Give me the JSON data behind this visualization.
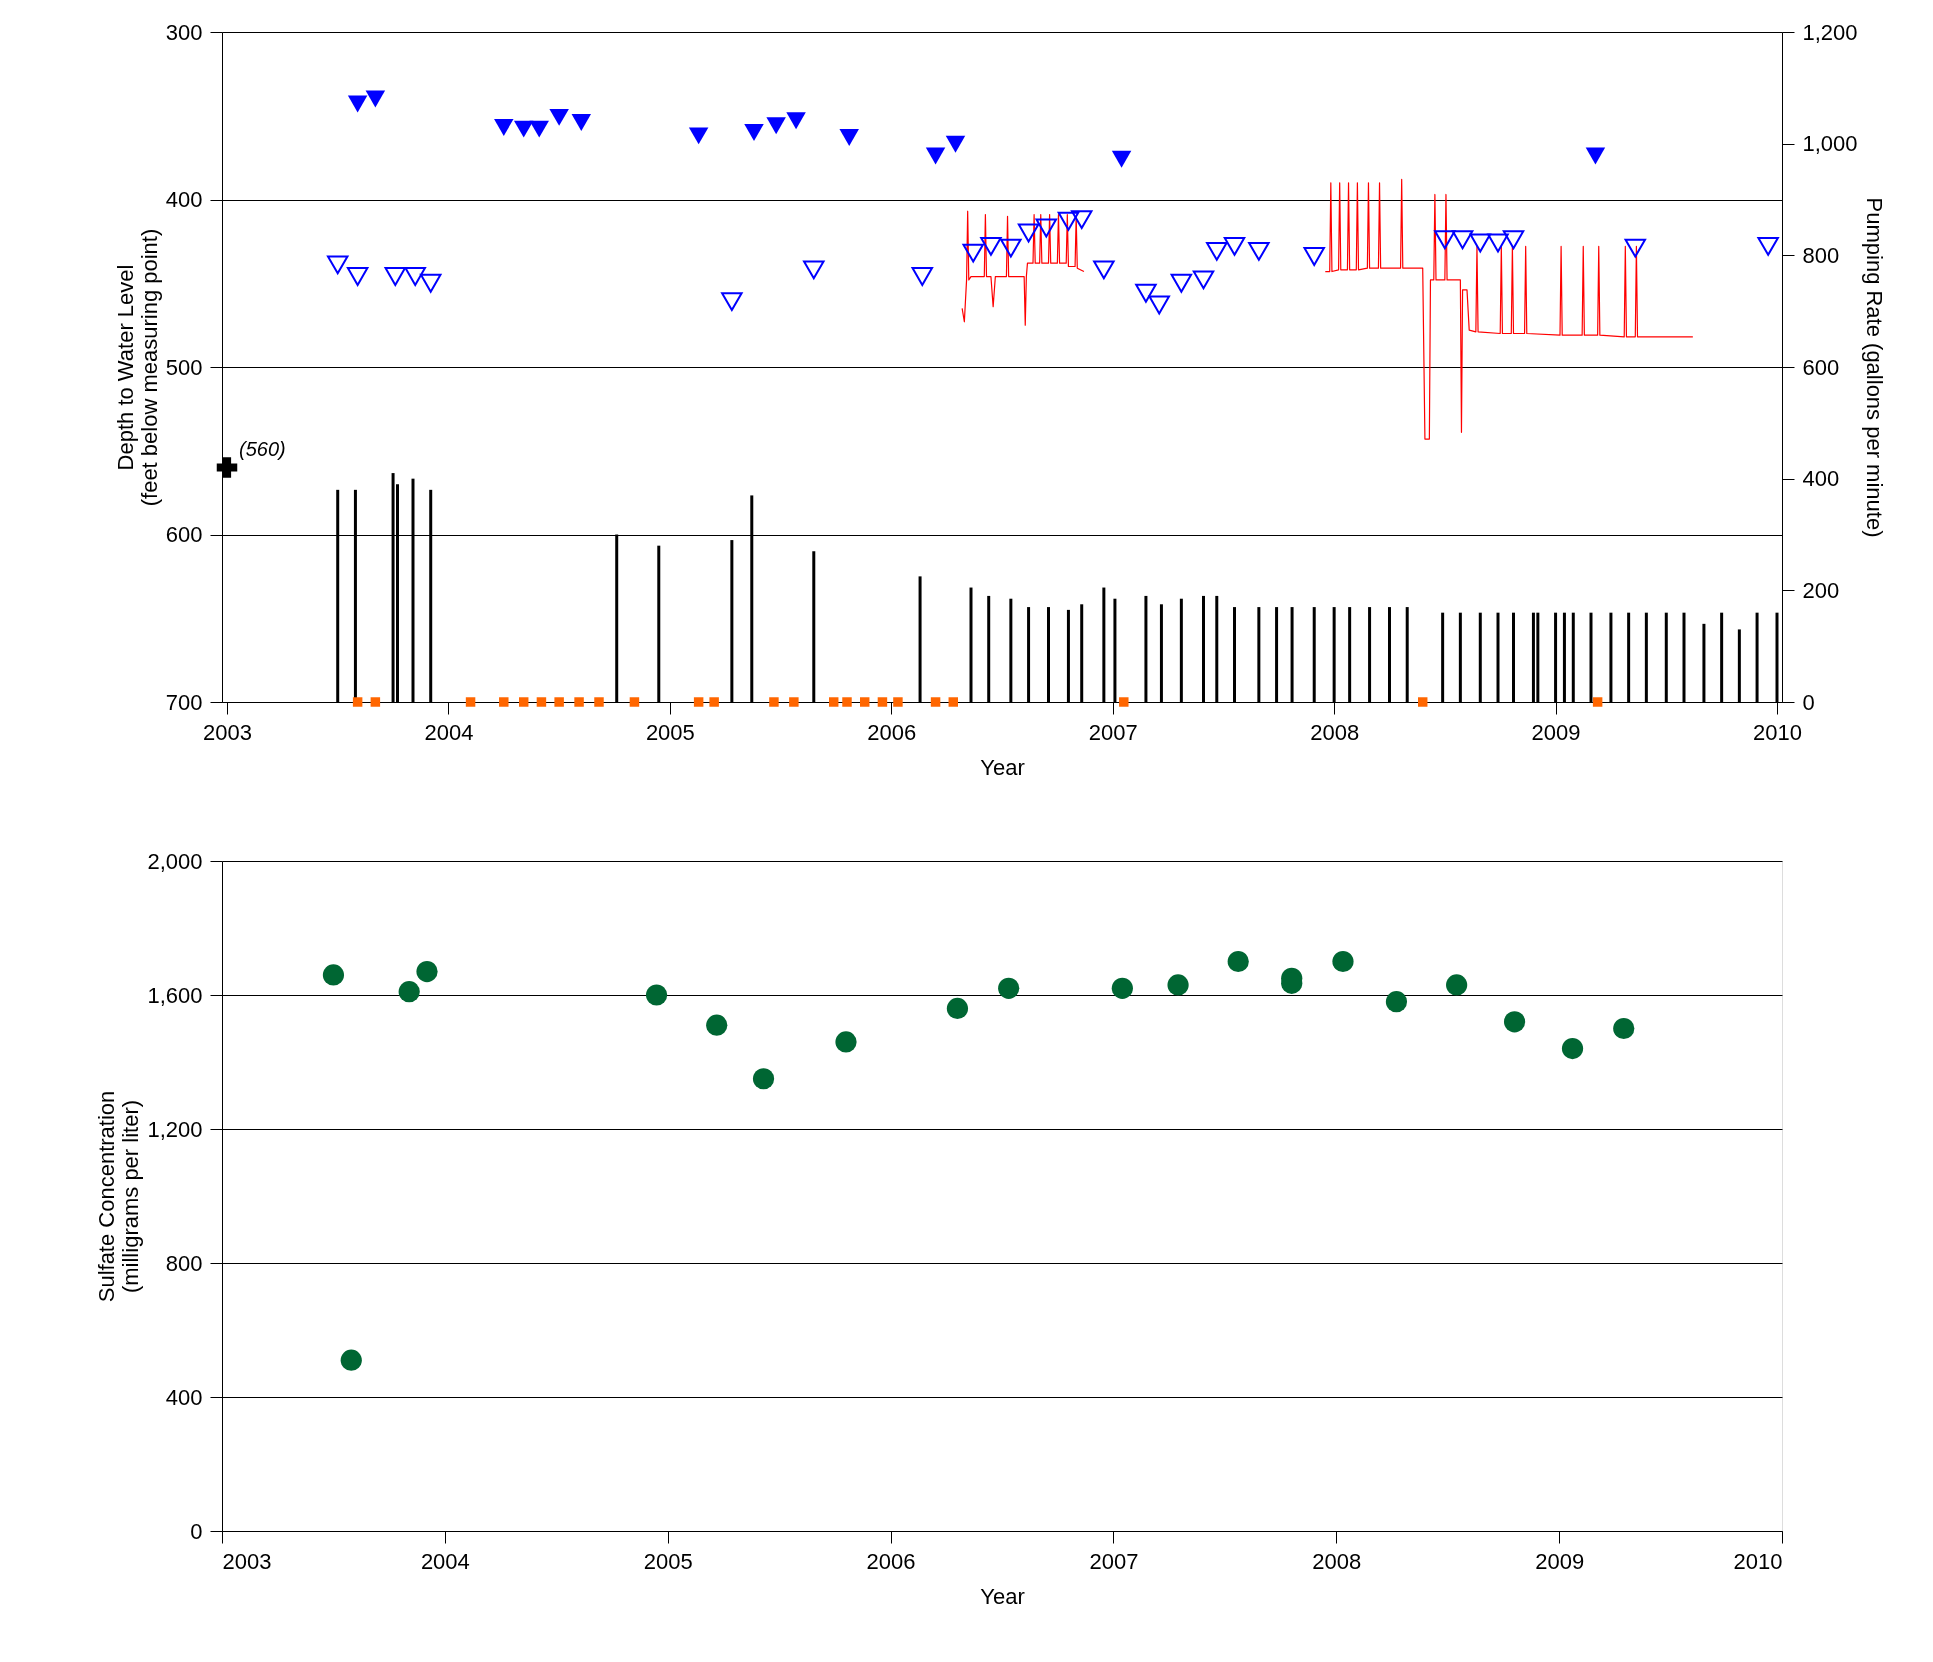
{
  "chart_data": [
    {
      "type": "scatter",
      "xlabel": "Year",
      "ylabel": "Depth to Water Level\n(feet below measuring point)",
      "y2label": "Pumping Rate (gallons per minute)",
      "xlim": [
        2003,
        2010
      ],
      "xticks": [
        2003,
        2004,
        2005,
        2006,
        2007,
        2008,
        2009,
        2010
      ],
      "ylim": [
        700,
        300
      ],
      "yticks": [
        300,
        400,
        500,
        600,
        700
      ],
      "y2lim": [
        0,
        1200
      ],
      "y2ticks": [
        0,
        200,
        400,
        600,
        800,
        {
          "value": 1000,
          "label": "1,000"
        },
        {
          "value": 1200,
          "label": "1,200"
        }
      ],
      "grid": "y",
      "annotations": [
        {
          "text": "(560)",
          "x": 2003,
          "y": 560
        }
      ],
      "series": [
        {
          "type": "bar",
          "axis": "y2",
          "color": "#000000",
          "x": [
            2003.5,
            2003.58,
            2003.75,
            2003.77,
            2003.84,
            2003.92,
            2004.76,
            2004.95,
            2005.28,
            2005.37,
            2005.65,
            2006.13,
            2006.36,
            2006.44,
            2006.54,
            2006.62,
            2006.71,
            2006.8,
            2006.86,
            2006.96,
            2007.01,
            2007.15,
            2007.22,
            2007.31,
            2007.41,
            2007.47,
            2007.55,
            2007.66,
            2007.74,
            2007.81,
            2007.91,
            2008.0,
            2008.07,
            2008.16,
            2008.25,
            2008.33,
            2008.49,
            2008.57,
            2008.66,
            2008.74,
            2008.81,
            2008.9,
            2008.92,
            2009.0,
            2009.04,
            2009.08,
            2009.16,
            2009.25,
            2009.33,
            2009.41,
            2009.5,
            2009.58,
            2009.67,
            2009.75,
            2009.83,
            2009.91,
            2010.0
          ],
          "values": [
            380,
            380,
            410,
            390,
            400,
            380,
            300,
            280,
            290,
            370,
            270,
            225,
            205,
            190,
            185,
            170,
            170,
            165,
            175,
            205,
            185,
            190,
            175,
            185,
            190,
            190,
            170,
            170,
            170,
            170,
            170,
            170,
            170,
            170,
            170,
            170,
            160,
            160,
            160,
            160,
            160,
            160,
            160,
            160,
            160,
            160,
            160,
            160,
            160,
            160,
            160,
            160,
            140,
            160,
            130,
            160,
            160
          ]
        },
        {
          "axis": "y2",
          "marker": "square",
          "color": "#ff6600",
          "x": [
            2003.59,
            2003.67,
            2004.1,
            2004.25,
            2004.34,
            2004.42,
            2004.5,
            2004.59,
            2004.68,
            2004.84,
            2005.13,
            2005.2,
            2005.47,
            2005.56,
            2005.74,
            2005.8,
            2005.88,
            2005.96,
            2006.03,
            2006.2,
            2006.28,
            2007.05,
            2008.4,
            2009.19
          ],
          "values": [
            0,
            0,
            0,
            0,
            0,
            0,
            0,
            0,
            0,
            0,
            0,
            0,
            0,
            0,
            0,
            0,
            0,
            0,
            0,
            0,
            0,
            0,
            0,
            0
          ]
        },
        {
          "type": "line",
          "color": "#ff0000",
          "x": [
            2006.32,
            2006.33,
            2006.34,
            2006.345,
            2006.35,
            2006.36,
            2006.4,
            2006.42,
            2006.425,
            2006.43,
            2006.45,
            2006.46,
            2006.47,
            2006.5,
            2006.52,
            2006.525,
            2006.53,
            2006.56,
            2006.58,
            2006.6,
            2006.605,
            2006.61,
            2006.615,
            2006.62,
            2006.64,
            2006.645,
            2006.65,
            2006.67,
            2006.675,
            2006.68,
            2006.71,
            2006.715,
            2006.72,
            2006.75,
            2006.755,
            2006.76,
            2006.79,
            2006.795,
            2006.8,
            2006.83,
            2006.835,
            2006.84,
            2006.87,
            2007.4,
            2007.96,
            2007.98,
            2007.985,
            2007.99,
            2008.02,
            2008.025,
            2008.03,
            2008.06,
            2008.065,
            2008.07,
            2008.1,
            2008.105,
            2008.11,
            2008.15,
            2008.155,
            2008.16,
            2008.2,
            2008.205,
            2008.21,
            2008.3,
            2008.305,
            2008.31,
            2008.4,
            2008.41,
            2008.412,
            2008.43,
            2008.435,
            2008.45,
            2008.455,
            2008.46,
            2008.5,
            2008.505,
            2008.51,
            2008.57,
            2008.575,
            2008.58,
            2008.6,
            2008.61,
            2008.64,
            2008.645,
            2008.65,
            2008.75,
            2008.755,
            2008.76,
            2008.8,
            2008.805,
            2008.81,
            2008.86,
            2008.865,
            2008.87,
            2009.02,
            2009.025,
            2009.03,
            2009.12,
            2009.125,
            2009.13,
            2009.19,
            2009.195,
            2009.2,
            2009.31,
            2009.315,
            2009.32,
            2009.36,
            2009.365,
            2009.37,
            2009.5,
            2009.62
          ],
          "values": [
            465,
            473,
            448,
            407,
            448,
            446,
            446,
            446,
            409,
            446,
            446,
            464,
            446,
            446,
            446,
            410,
            446,
            446,
            446,
            446,
            475,
            446,
            438,
            438,
            438,
            409,
            438,
            438,
            409,
            438,
            438,
            409,
            438,
            438,
            409,
            438,
            438,
            409,
            440,
            440,
            410,
            441,
            443,
            null,
            443,
            443,
            390,
            443,
            442,
            390,
            442,
            442,
            390,
            442,
            442,
            390,
            442,
            441,
            390,
            441,
            441,
            390,
            441,
            441,
            388,
            441,
            441,
            543,
            543,
            543,
            448,
            448,
            397,
            448,
            448,
            397,
            448,
            448,
            539,
            454,
            454,
            478,
            479,
            428,
            479,
            480,
            428,
            480,
            480,
            428,
            480,
            480,
            428,
            480,
            481,
            428,
            481,
            481,
            428,
            481,
            481,
            428,
            481,
            482,
            428,
            482,
            482,
            428,
            482,
            482,
            482
          ]
        },
        {
          "marker": "triangle",
          "color": "#0000ff",
          "x": [
            2003.59,
            2003.67,
            2004.25,
            2004.34,
            2004.41,
            2004.5,
            2004.6,
            2005.13,
            2005.38,
            2005.48,
            2005.57,
            2005.81,
            2006.2,
            2006.29,
            2007.04,
            2009.18
          ],
          "values": [
            343,
            340,
            357,
            358,
            358,
            351,
            354,
            362,
            360,
            356,
            353,
            363,
            374,
            367,
            376,
            374
          ]
        },
        {
          "marker": "triangle",
          "color": "#0000ff",
          "x": [
            2003.5,
            2003.59,
            2003.76,
            2003.85,
            2003.92,
            2005.28,
            2005.65,
            2006.14,
            2006.37,
            2006.45,
            2006.54,
            2006.62,
            2006.7,
            2006.8,
            2006.86,
            2006.96,
            2007.15,
            2007.21,
            2007.31,
            2007.41,
            2007.47,
            2007.55,
            2007.66,
            2007.91,
            2008.5,
            2008.58,
            2008.66,
            2008.74,
            2008.81,
            2009.36,
            2009.96
          ],
          "values": [
            439,
            446,
            446,
            446,
            450,
            461,
            442,
            446,
            432,
            428,
            429,
            420,
            417,
            413,
            412,
            442,
            456,
            463,
            450,
            448,
            431,
            428,
            431,
            434,
            424,
            424,
            426,
            426,
            424,
            429,
            428
          ]
        },
        {
          "marker": "cross",
          "color": "#000000",
          "x": [
            2003.0
          ],
          "values": [
            560
          ]
        }
      ]
    },
    {
      "type": "scatter",
      "xlabel": "Year",
      "ylabel": "Sulfate Concentration\n(milligrams per liter)",
      "xlim": [
        2003,
        2010
      ],
      "xticks": [
        2003,
        2004,
        2005,
        2006,
        2007,
        2008,
        2009,
        2010
      ],
      "ylim": [
        0,
        2000
      ],
      "yticks": [
        0,
        400,
        800,
        {
          "value": 1200,
          "label": "1,200"
        },
        {
          "value": 1600,
          "label": "1,600"
        },
        {
          "value": 2000,
          "label": "2,000"
        }
      ],
      "grid": "y",
      "series": [
        {
          "marker": "circle",
          "color": "#006633",
          "x": [
            2003.5,
            2003.58,
            2003.84,
            2003.92,
            2004.95,
            2005.22,
            2005.43,
            2005.8,
            2006.3,
            2006.53,
            2007.04,
            2007.29,
            2007.56,
            2007.8,
            2007.8,
            2008.03,
            2008.27,
            2008.54,
            2008.8,
            2009.06,
            2009.29
          ],
          "values": [
            1660,
            510,
            1610,
            1670,
            1600,
            1510,
            1350,
            1460,
            1560,
            1620,
            1620,
            1630,
            1700,
            1650,
            1635,
            1700,
            1580,
            1630,
            1520,
            1440,
            1500
          ]
        }
      ]
    }
  ]
}
